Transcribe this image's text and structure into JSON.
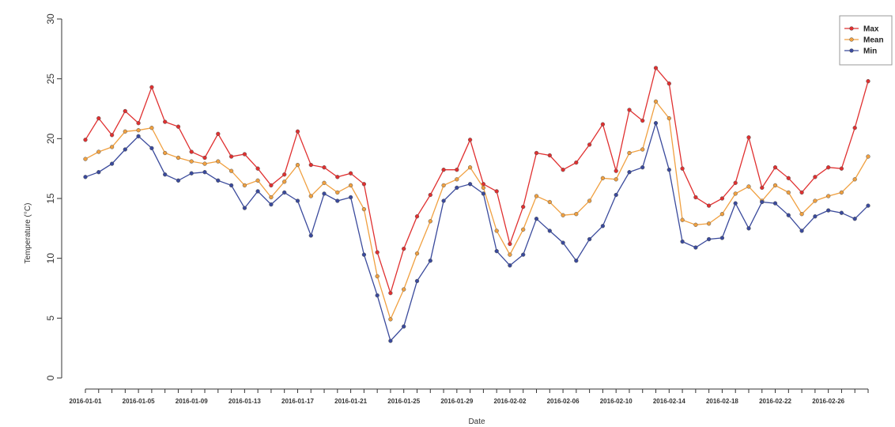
{
  "chart_data": {
    "type": "line",
    "xlabel": "Date",
    "ylabel": "Temperature (°C)",
    "ylim": [
      0,
      30
    ],
    "yticks": [
      0,
      5,
      10,
      15,
      20,
      25,
      30
    ],
    "x_start": "2016-01-01",
    "x_tick_labels": [
      "2016-01-01",
      "2016-01-05",
      "2016-01-09",
      "2016-01-13",
      "2016-01-17",
      "2016-01-21",
      "2016-01-25",
      "2016-01-29",
      "2016-02-02",
      "2016-02-06",
      "2016-02-10",
      "2016-02-14",
      "2016-02-18",
      "2016-02-22",
      "2016-02-26"
    ],
    "legend_position": "top-right",
    "x": [
      "2016-01-01",
      "2016-01-02",
      "2016-01-03",
      "2016-01-04",
      "2016-01-05",
      "2016-01-06",
      "2016-01-07",
      "2016-01-08",
      "2016-01-09",
      "2016-01-10",
      "2016-01-11",
      "2016-01-12",
      "2016-01-13",
      "2016-01-14",
      "2016-01-15",
      "2016-01-16",
      "2016-01-17",
      "2016-01-18",
      "2016-01-19",
      "2016-01-20",
      "2016-01-21",
      "2016-01-22",
      "2016-01-23",
      "2016-01-24",
      "2016-01-25",
      "2016-01-26",
      "2016-01-27",
      "2016-01-28",
      "2016-01-29",
      "2016-01-30",
      "2016-01-31",
      "2016-02-01",
      "2016-02-02",
      "2016-02-03",
      "2016-02-04",
      "2016-02-05",
      "2016-02-06",
      "2016-02-07",
      "2016-02-08",
      "2016-02-09",
      "2016-02-10",
      "2016-02-11",
      "2016-02-12",
      "2016-02-13",
      "2016-02-14",
      "2016-02-15",
      "2016-02-16",
      "2016-02-17",
      "2016-02-18",
      "2016-02-19",
      "2016-02-20",
      "2016-02-21",
      "2016-02-22",
      "2016-02-23",
      "2016-02-24",
      "2016-02-25",
      "2016-02-26",
      "2016-02-27",
      "2016-02-28",
      "2016-02-29"
    ],
    "series": [
      {
        "name": "Max",
        "color": "#e03030",
        "values": [
          19.9,
          21.7,
          20.3,
          22.3,
          21.3,
          24.3,
          21.4,
          21.0,
          18.9,
          18.4,
          20.4,
          18.5,
          18.7,
          17.5,
          16.1,
          17.0,
          20.6,
          17.8,
          17.6,
          16.8,
          17.1,
          16.2,
          10.5,
          7.1,
          10.8,
          13.5,
          15.3,
          17.4,
          17.4,
          19.9,
          16.2,
          15.6,
          11.2,
          14.3,
          18.8,
          18.6,
          17.4,
          18.0,
          19.5,
          21.2,
          17.3,
          22.4,
          21.5,
          25.9,
          24.6,
          17.5,
          15.1,
          14.4,
          15.0,
          16.3,
          20.1,
          15.9,
          17.6,
          16.7,
          15.5,
          16.8,
          17.6,
          17.5,
          20.9,
          24.8
        ]
      },
      {
        "name": "Mean",
        "color": "#f0a040",
        "values": [
          18.3,
          18.9,
          19.3,
          20.6,
          20.7,
          20.9,
          18.8,
          18.4,
          18.1,
          17.9,
          18.1,
          17.3,
          16.1,
          16.5,
          15.1,
          16.4,
          17.8,
          15.2,
          16.3,
          15.5,
          16.1,
          14.1,
          8.5,
          4.9,
          7.4,
          10.4,
          13.1,
          16.1,
          16.6,
          17.6,
          15.9,
          12.3,
          10.3,
          12.4,
          15.2,
          14.7,
          13.6,
          13.7,
          14.8,
          16.7,
          16.6,
          18.8,
          19.1,
          23.1,
          21.7,
          13.2,
          12.8,
          12.9,
          13.7,
          15.4,
          16.0,
          14.8,
          16.1,
          15.5,
          13.7,
          14.8,
          15.2,
          15.5,
          16.6,
          18.5
        ]
      },
      {
        "name": "Min",
        "color": "#3a4a9c",
        "values": [
          16.8,
          17.2,
          17.9,
          19.1,
          20.2,
          19.2,
          17.0,
          16.5,
          17.1,
          17.2,
          16.5,
          16.1,
          14.2,
          15.6,
          14.5,
          15.5,
          14.8,
          11.9,
          15.4,
          14.8,
          15.1,
          10.3,
          6.9,
          3.1,
          4.3,
          8.1,
          9.8,
          14.8,
          15.9,
          16.2,
          15.4,
          10.6,
          9.4,
          10.3,
          13.3,
          12.3,
          11.3,
          9.8,
          11.6,
          12.7,
          15.3,
          17.2,
          17.6,
          21.3,
          17.4,
          11.4,
          10.9,
          11.6,
          11.7,
          14.6,
          12.5,
          14.7,
          14.6,
          13.6,
          12.3,
          13.5,
          14.0,
          13.8,
          13.3,
          14.4
        ]
      }
    ]
  }
}
